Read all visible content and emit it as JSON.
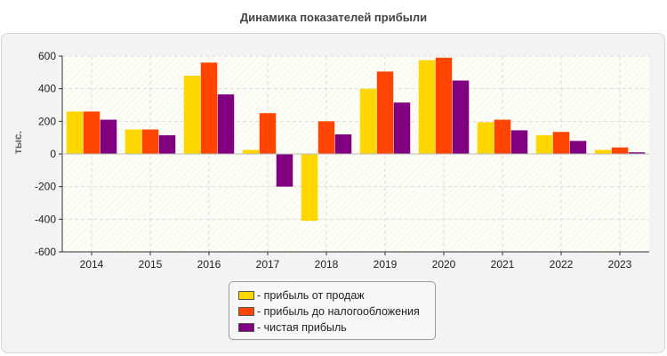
{
  "chart_data": {
    "type": "bar",
    "title": "Динамика показателей прибыли",
    "ylabel": "тыс.",
    "xlabel": "",
    "categories": [
      "2014",
      "2015",
      "2016",
      "2017",
      "2018",
      "2019",
      "2020",
      "2021",
      "2022",
      "2023"
    ],
    "series": [
      {
        "name": "- прибыль от продаж",
        "color": "#FFD700",
        "values": [
          260,
          150,
          480,
          25,
          -410,
          400,
          575,
          195,
          115,
          25
        ]
      },
      {
        "name": "- прибыль до налогообложения",
        "color": "#FF4500",
        "values": [
          260,
          150,
          560,
          250,
          200,
          505,
          590,
          210,
          135,
          40
        ]
      },
      {
        "name": "- чистая прибыль",
        "color": "#800080",
        "values": [
          210,
          115,
          365,
          -200,
          120,
          315,
          450,
          145,
          80,
          10
        ]
      }
    ],
    "ylim": [
      -600,
      600
    ],
    "yticks": [
      -600,
      -400,
      -200,
      0,
      200,
      400,
      600
    ],
    "grid": true,
    "legend_position": "bottom-center"
  }
}
